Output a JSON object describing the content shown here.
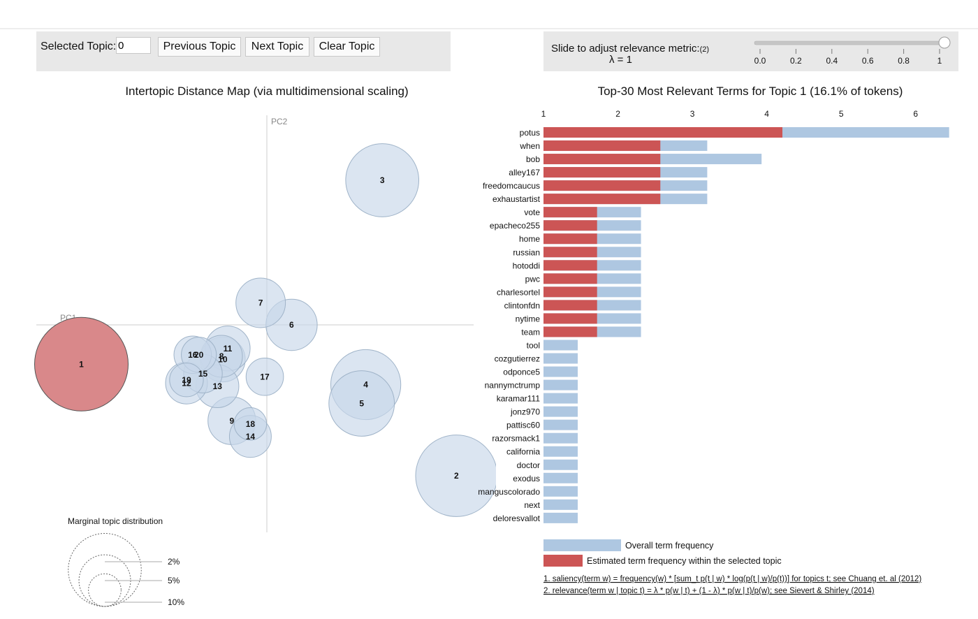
{
  "controls": {
    "selected_topic_label": "Selected Topic:",
    "selected_topic_value": "0",
    "previous_label": "Previous Topic",
    "next_label": "Next Topic",
    "clear_label": "Clear Topic"
  },
  "relevance": {
    "label": "Slide to adjust relevance metric:",
    "footnote_mark": "(2)",
    "lambda_text": "λ = 1",
    "value": 1,
    "ticks": [
      "0.0",
      "0.2",
      "0.4",
      "0.6",
      "0.8",
      "1"
    ]
  },
  "colors": {
    "bubble_fill": "#c7d7e9",
    "bubble_stroke": "#9fb3c8",
    "selected_fill": "#d9888a",
    "bar_overall": "#aec7e1",
    "bar_estimated": "#cc5555"
  },
  "chart_data": [
    {
      "type": "scatter",
      "title": "Intertopic Distance Map (via multidimensional scaling)",
      "xlabel": "PC1",
      "ylabel": "PC2",
      "selected_topic": "1",
      "topics": [
        {
          "label": "1",
          "x": -0.45,
          "y": -0.125,
          "size": 10.0
        },
        {
          "label": "2",
          "x": 0.46,
          "y": -0.48,
          "size": 7.6
        },
        {
          "label": "3",
          "x": 0.28,
          "y": 0.46,
          "size": 6.1
        },
        {
          "label": "4",
          "x": 0.24,
          "y": -0.19,
          "size": 5.6
        },
        {
          "label": "5",
          "x": 0.23,
          "y": -0.25,
          "size": 4.9
        },
        {
          "label": "6",
          "x": 0.06,
          "y": 0.0,
          "size": 3.0
        },
        {
          "label": "7",
          "x": -0.015,
          "y": 0.07,
          "size": 2.8
        },
        {
          "label": "8",
          "x": -0.11,
          "y": -0.1,
          "size": 2.0
        },
        {
          "label": "9",
          "x": -0.085,
          "y": -0.305,
          "size": 2.6
        },
        {
          "label": "10",
          "x": -0.107,
          "y": -0.11,
          "size": 2.3
        },
        {
          "label": "11",
          "x": -0.095,
          "y": -0.075,
          "size": 2.3
        },
        {
          "label": "12",
          "x": -0.195,
          "y": -0.185,
          "size": 2.0
        },
        {
          "label": "13",
          "x": -0.12,
          "y": -0.195,
          "size": 2.1
        },
        {
          "label": "14",
          "x": -0.04,
          "y": -0.355,
          "size": 2.0
        },
        {
          "label": "15",
          "x": -0.155,
          "y": -0.155,
          "size": 1.7
        },
        {
          "label": "16",
          "x": -0.18,
          "y": -0.095,
          "size": 1.6
        },
        {
          "label": "17",
          "x": -0.005,
          "y": -0.165,
          "size": 1.6
        },
        {
          "label": "18",
          "x": -0.04,
          "y": -0.315,
          "size": 1.2
        },
        {
          "label": "19",
          "x": -0.195,
          "y": -0.175,
          "size": 1.3
        },
        {
          "label": "20",
          "x": -0.165,
          "y": -0.095,
          "size": 1.4
        }
      ],
      "legend": {
        "title": "Marginal topic distribution",
        "entries": [
          "2%",
          "5%",
          "10%"
        ],
        "sizes": [
          2,
          5,
          10
        ]
      }
    },
    {
      "type": "bar",
      "title": "Top-30 Most Relevant Terms for Topic 1 (16.1% of tokens)",
      "xlim": [
        1,
        6.5
      ],
      "xticks": [
        "1",
        "2",
        "3",
        "4",
        "5",
        "6"
      ],
      "terms": [
        "potus",
        "when",
        "bob",
        "alley167",
        "freedomcaucus",
        "exhaustartist",
        "vote",
        "epacheco255",
        "home",
        "russian",
        "hotoddi",
        "pwc",
        "charlesortel",
        "clintonfdn",
        "nytime",
        "team",
        "tool",
        "cozgutierrez",
        "odponce5",
        "nannymctrump",
        "karamar111",
        "jonz970",
        "pattisc60",
        "razorsmack1",
        "california",
        "doctor",
        "exodus",
        "manguscolorado",
        "next",
        "deloresvallot"
      ],
      "series": [
        {
          "name": "Overall term frequency",
          "values": [
            6.45,
            3.2,
            3.93,
            3.2,
            3.2,
            3.2,
            2.31,
            2.31,
            2.31,
            2.31,
            2.31,
            2.31,
            2.31,
            2.31,
            2.31,
            2.31,
            1.46,
            1.46,
            1.46,
            1.46,
            1.46,
            1.46,
            1.46,
            1.46,
            1.46,
            1.46,
            1.46,
            1.46,
            1.46,
            1.46
          ]
        },
        {
          "name": "Estimated term frequency within the selected topic",
          "values": [
            4.21,
            2.57,
            2.57,
            2.57,
            2.57,
            2.57,
            1.72,
            1.72,
            1.72,
            1.72,
            1.72,
            1.72,
            1.72,
            1.72,
            1.72,
            1.72,
            0,
            0,
            0,
            0,
            0,
            0,
            0,
            0,
            0,
            0,
            0,
            0,
            0,
            0
          ]
        }
      ],
      "footnotes": [
        "1. saliency(term w) = frequency(w) * [sum_t p(t | w) * log(p(t | w)/p(t))] for topics t; see Chuang et. al (2012)",
        "2. relevance(term w | topic t) = λ * p(w | t) + (1 - λ) * p(w | t)/p(w); see Sievert & Shirley (2014)"
      ]
    }
  ]
}
